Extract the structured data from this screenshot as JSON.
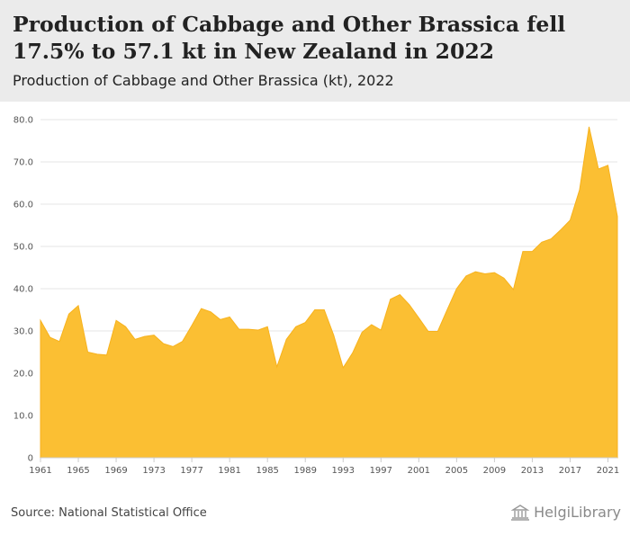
{
  "header": {
    "title": "Production of Cabbage and Other Brassica fell 17.5% to 57.1 kt in New Zealand in 2022",
    "subtitle": "Production of Cabbage and Other Brassica (kt), 2022"
  },
  "footer": {
    "source": "Source: National Statistical Office",
    "logo_text": "HelgiLibrary"
  },
  "colors": {
    "fill": "#fbbf33",
    "stroke": "#f7b21d",
    "grid": "#e6e6e6",
    "axis": "#cccccc"
  },
  "chart_data": {
    "type": "area",
    "title": "Production of Cabbage and Other Brassica fell 17.5% to 57.1 kt in New Zealand in 2022",
    "subtitle": "Production of Cabbage and Other Brassica (kt), 2022",
    "xlabel": "",
    "ylabel": "",
    "ylim": [
      0,
      80
    ],
    "y_ticks": [
      "0",
      "10.0",
      "20.0",
      "30.0",
      "40.0",
      "50.0",
      "60.0",
      "70.0",
      "80.0"
    ],
    "x_ticks": [
      "1961",
      "1965",
      "1969",
      "1973",
      "1977",
      "1981",
      "1985",
      "1989",
      "1993",
      "1997",
      "2001",
      "2005",
      "2009",
      "2013",
      "2017",
      "2021"
    ],
    "grid": true,
    "x": [
      1961,
      1962,
      1963,
      1964,
      1965,
      1966,
      1967,
      1968,
      1969,
      1970,
      1971,
      1972,
      1973,
      1974,
      1975,
      1976,
      1977,
      1978,
      1979,
      1980,
      1981,
      1982,
      1983,
      1984,
      1985,
      1986,
      1987,
      1988,
      1989,
      1990,
      1991,
      1992,
      1993,
      1994,
      1995,
      1996,
      1997,
      1998,
      1999,
      2000,
      2001,
      2002,
      2003,
      2004,
      2005,
      2006,
      2007,
      2008,
      2009,
      2010,
      2011,
      2012,
      2013,
      2014,
      2015,
      2016,
      2017,
      2018,
      2019,
      2020,
      2021,
      2022
    ],
    "series": [
      {
        "values": [
          32.5,
          28.5,
          27.5,
          34.0,
          36.0,
          25.0,
          24.5,
          24.3,
          32.5,
          31.0,
          28.0,
          28.7,
          29.0,
          27.0,
          26.3,
          27.5,
          31.3,
          35.3,
          34.5,
          32.7,
          33.3,
          30.4,
          30.4,
          30.2,
          31.0,
          21.5,
          28.0,
          31.0,
          32.0,
          35.0,
          35.0,
          29.0,
          21.3,
          24.8,
          29.7,
          31.5,
          30.2,
          37.5,
          38.6,
          36.2,
          33.1,
          29.9,
          29.9,
          35.0,
          40.0,
          43.0,
          44.0,
          43.5,
          43.8,
          42.5,
          39.8,
          48.8,
          48.8,
          51.0,
          51.8,
          53.9,
          56.2,
          63.4,
          78.3,
          68.3,
          69.2,
          57.1
        ]
      }
    ]
  }
}
